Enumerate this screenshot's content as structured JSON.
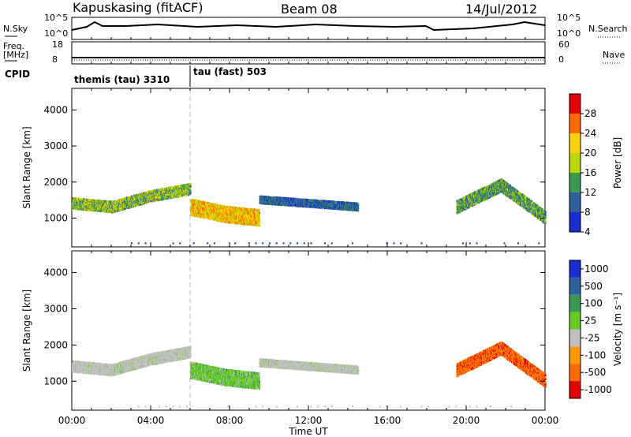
{
  "header": {
    "station": "Kapuskasing (fitACF)",
    "beam": "Beam 08",
    "date": "14/Jul/2012"
  },
  "top_panels": {
    "nsky_label": "N.Sky",
    "nsky_ticks": [
      "10^5",
      "10^0"
    ],
    "nsearch_label": "N.Search",
    "nsearch_ticks": [
      "10^5",
      "10^0"
    ],
    "freq_label_1": "Freq.",
    "freq_label_2": "[MHz]",
    "freq_ticks": [
      "18",
      "8"
    ],
    "nave_label": "Nave",
    "nave_ticks": [
      "60",
      "0"
    ],
    "cpid_label": "CPID",
    "cpid_segments": [
      "themis (tau) 3310",
      "tau (fast) 503"
    ]
  },
  "chart_data": [
    {
      "type": "heatmap",
      "quantity": "Power",
      "ylabel": "Slant Range [km]",
      "ylim": [
        200,
        4600
      ],
      "yticks": [
        1000,
        2000,
        3000,
        4000
      ],
      "colorbar_label": "Power [dB]",
      "colorbar_ticks": [
        "28",
        "24",
        "20",
        "16",
        "12",
        "8",
        "4"
      ],
      "colorbar_colors": [
        "#e00000",
        "#ff6a00",
        "#ffd200",
        "#b8d800",
        "#3a9a52",
        "#2f5f9c",
        "#1c2cd0"
      ],
      "echo_bands": [
        {
          "start_h": 0.0,
          "end_h": 6.0,
          "center_km": [
            1400,
            1300,
            1600,
            1800
          ],
          "width_km": 300,
          "level": 14
        },
        {
          "start_h": 6.0,
          "end_h": 9.5,
          "center_km": [
            1300,
            1100,
            1000
          ],
          "width_km": 450,
          "level": 20
        },
        {
          "start_h": 9.5,
          "end_h": 14.5,
          "center_km": [
            1500,
            1400,
            1300
          ],
          "width_km": 200,
          "level": 8
        },
        {
          "start_h": 19.5,
          "end_h": 24.0,
          "center_km": [
            1300,
            1900,
            1000
          ],
          "width_km": 350,
          "level": 12
        }
      ]
    },
    {
      "type": "heatmap",
      "quantity": "Velocity",
      "ylabel": "Slant Range [km]",
      "xlabel": "Time UT",
      "xlim": [
        "00:00",
        "24:00"
      ],
      "xticks": [
        "00:00",
        "04:00",
        "08:00",
        "12:00",
        "16:00",
        "20:00",
        "00:00"
      ],
      "ylim": [
        200,
        4600
      ],
      "yticks": [
        1000,
        2000,
        3000,
        4000
      ],
      "colorbar_label": "Velocity [m s⁻¹]",
      "colorbar_ticks": [
        "1000",
        "500",
        "100",
        "25",
        "-25",
        "-100",
        "-500",
        "-1000"
      ],
      "colorbar_colors": [
        "#1c2cd0",
        "#2f5f9c",
        "#3a9a52",
        "#66cc22",
        "#c0c0c0",
        "#ff9900",
        "#ff6a00",
        "#e00000"
      ],
      "echo_bands": [
        {
          "start_h": 0.0,
          "end_h": 6.0,
          "center_km": [
            1400,
            1300,
            1600,
            1800
          ],
          "width_km": 300,
          "velocity": 0
        },
        {
          "start_h": 6.0,
          "end_h": 9.5,
          "center_km": [
            1300,
            1100,
            1000
          ],
          "width_km": 450,
          "velocity": 100
        },
        {
          "start_h": 9.5,
          "end_h": 14.5,
          "center_km": [
            1500,
            1400,
            1300
          ],
          "width_km": 200,
          "velocity": 0
        },
        {
          "start_h": 19.5,
          "end_h": 24.0,
          "center_km": [
            1300,
            1900,
            1000
          ],
          "width_km": 350,
          "velocity": -500
        }
      ]
    }
  ]
}
